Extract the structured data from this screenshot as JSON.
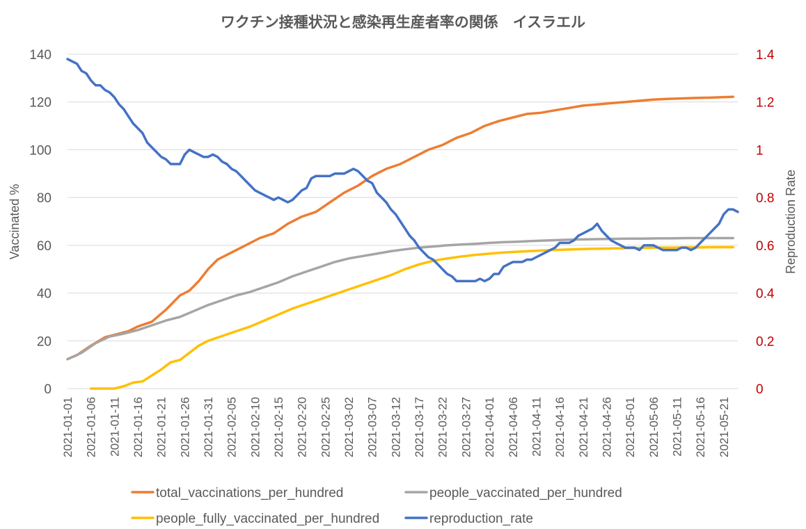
{
  "chart_data": {
    "type": "line",
    "title": "ワクチン接種状況と感染再生産者率の関係　イスラエル",
    "ylabel": "Vaccinated %",
    "y2label": "Reproduction Rate",
    "ylim": [
      0,
      140
    ],
    "y2lim": [
      0,
      1.4
    ],
    "yticks": [
      "0",
      "20",
      "40",
      "60",
      "80",
      "100",
      "120",
      "140"
    ],
    "y2ticks": [
      "0",
      "0.2",
      "0.4",
      "0.6",
      "0.8",
      "1",
      "1.2",
      "1.4"
    ],
    "xtick_labels": [
      "2021-01-01",
      "2021-01-06",
      "2021-01-11",
      "2021-01-16",
      "2021-01-21",
      "2021-01-26",
      "2021-01-31",
      "2021-02-05",
      "2021-02-10",
      "2021-02-15",
      "2021-02-20",
      "2021-02-25",
      "2021-03-02",
      "2021-03-07",
      "2021-03-12",
      "2021-03-17",
      "2021-03-22",
      "2021-03-27",
      "2021-04-01",
      "2021-04-06",
      "2021-04-11",
      "2021-04-16",
      "2021-04-21",
      "2021-04-26",
      "2021-05-01",
      "2021-05-06",
      "2021-05-11",
      "2021-05-16",
      "2021-05-21"
    ],
    "day_count": 143,
    "legend_position": "bottom",
    "series": [
      {
        "name": "total_vaccinations_per_hundred",
        "axis": "left",
        "color": "#ED7D31",
        "points": [
          [
            0,
            12.3
          ],
          [
            2,
            14
          ],
          [
            5,
            18
          ],
          [
            8,
            21.5
          ],
          [
            10,
            22.5
          ],
          [
            13,
            24
          ],
          [
            15,
            26
          ],
          [
            18,
            28
          ],
          [
            21,
            33
          ],
          [
            24,
            39
          ],
          [
            26,
            41
          ],
          [
            28,
            45
          ],
          [
            30,
            50
          ],
          [
            32,
            54
          ],
          [
            35,
            57
          ],
          [
            38,
            60
          ],
          [
            41,
            63
          ],
          [
            44,
            65
          ],
          [
            47,
            69
          ],
          [
            50,
            72
          ],
          [
            53,
            74
          ],
          [
            56,
            78
          ],
          [
            59,
            82
          ],
          [
            62,
            85
          ],
          [
            65,
            89
          ],
          [
            68,
            92
          ],
          [
            71,
            94
          ],
          [
            74,
            97
          ],
          [
            77,
            100
          ],
          [
            80,
            102
          ],
          [
            83,
            105
          ],
          [
            86,
            107
          ],
          [
            89,
            110
          ],
          [
            92,
            112
          ],
          [
            95,
            113.5
          ],
          [
            98,
            115
          ],
          [
            101,
            115.5
          ],
          [
            104,
            116.5
          ],
          [
            107,
            117.5
          ],
          [
            110,
            118.5
          ],
          [
            113,
            119
          ],
          [
            116,
            119.5
          ],
          [
            119,
            120
          ],
          [
            122,
            120.5
          ],
          [
            125,
            121
          ],
          [
            128,
            121.3
          ],
          [
            131,
            121.5
          ],
          [
            134,
            121.7
          ],
          [
            137,
            121.8
          ],
          [
            140,
            122
          ],
          [
            142,
            122.2
          ]
        ]
      },
      {
        "name": "people_vaccinated_per_hundred",
        "axis": "left",
        "color": "#A5A5A5",
        "points": [
          [
            0,
            12.3
          ],
          [
            3,
            15
          ],
          [
            6,
            19
          ],
          [
            9,
            21.8
          ],
          [
            12,
            23
          ],
          [
            15,
            24.5
          ],
          [
            18,
            26.5
          ],
          [
            21,
            28.5
          ],
          [
            24,
            30
          ],
          [
            27,
            32.5
          ],
          [
            30,
            35
          ],
          [
            33,
            37
          ],
          [
            36,
            39
          ],
          [
            39,
            40.5
          ],
          [
            42,
            42.5
          ],
          [
            45,
            44.5
          ],
          [
            48,
            47
          ],
          [
            51,
            49
          ],
          [
            54,
            51
          ],
          [
            57,
            53
          ],
          [
            60,
            54.5
          ],
          [
            63,
            55.5
          ],
          [
            66,
            56.5
          ],
          [
            69,
            57.5
          ],
          [
            72,
            58.3
          ],
          [
            75,
            59
          ],
          [
            78,
            59.5
          ],
          [
            81,
            60
          ],
          [
            84,
            60.3
          ],
          [
            87,
            60.6
          ],
          [
            90,
            61
          ],
          [
            93,
            61.3
          ],
          [
            96,
            61.5
          ],
          [
            99,
            61.8
          ],
          [
            102,
            62
          ],
          [
            105,
            62.2
          ],
          [
            108,
            62.4
          ],
          [
            111,
            62.5
          ],
          [
            114,
            62.6
          ],
          [
            117,
            62.7
          ],
          [
            120,
            62.8
          ],
          [
            123,
            62.8
          ],
          [
            126,
            62.9
          ],
          [
            129,
            62.9
          ],
          [
            132,
            63
          ],
          [
            135,
            63
          ],
          [
            138,
            63
          ],
          [
            142,
            63
          ]
        ]
      },
      {
        "name": "people_fully_vaccinated_per_hundred",
        "axis": "left",
        "color": "#FFC000",
        "points": [
          [
            5,
            0
          ],
          [
            10,
            0
          ],
          [
            12,
            1
          ],
          [
            14,
            2.5
          ],
          [
            16,
            3
          ],
          [
            18,
            5.5
          ],
          [
            20,
            8
          ],
          [
            22,
            11
          ],
          [
            24,
            12
          ],
          [
            26,
            15
          ],
          [
            28,
            18
          ],
          [
            30,
            20
          ],
          [
            33,
            22
          ],
          [
            36,
            24
          ],
          [
            39,
            26
          ],
          [
            42,
            28.5
          ],
          [
            45,
            31
          ],
          [
            48,
            33.5
          ],
          [
            51,
            35.5
          ],
          [
            54,
            37.5
          ],
          [
            57,
            39.5
          ],
          [
            60,
            41.5
          ],
          [
            63,
            43.5
          ],
          [
            66,
            45.5
          ],
          [
            69,
            47.5
          ],
          [
            72,
            50
          ],
          [
            75,
            52
          ],
          [
            78,
            53.5
          ],
          [
            81,
            54.5
          ],
          [
            84,
            55.3
          ],
          [
            87,
            56
          ],
          [
            90,
            56.5
          ],
          [
            93,
            57
          ],
          [
            96,
            57.3
          ],
          [
            99,
            57.6
          ],
          [
            102,
            57.9
          ],
          [
            105,
            58.1
          ],
          [
            108,
            58.3
          ],
          [
            111,
            58.5
          ],
          [
            114,
            58.6
          ],
          [
            117,
            58.7
          ],
          [
            120,
            58.8
          ],
          [
            123,
            58.9
          ],
          [
            126,
            59
          ],
          [
            129,
            59
          ],
          [
            132,
            59.1
          ],
          [
            135,
            59.1
          ],
          [
            138,
            59.2
          ],
          [
            142,
            59.2
          ]
        ]
      },
      {
        "name": "reproduction_rate",
        "axis": "right",
        "color": "#4472C4",
        "points": [
          [
            0,
            1.38
          ],
          [
            1,
            1.37
          ],
          [
            2,
            1.36
          ],
          [
            3,
            1.33
          ],
          [
            4,
            1.32
          ],
          [
            5,
            1.29
          ],
          [
            6,
            1.27
          ],
          [
            7,
            1.27
          ],
          [
            8,
            1.25
          ],
          [
            9,
            1.24
          ],
          [
            10,
            1.22
          ],
          [
            11,
            1.19
          ],
          [
            12,
            1.17
          ],
          [
            13,
            1.14
          ],
          [
            14,
            1.11
          ],
          [
            15,
            1.09
          ],
          [
            16,
            1.07
          ],
          [
            17,
            1.03
          ],
          [
            18,
            1.01
          ],
          [
            19,
            0.99
          ],
          [
            20,
            0.97
          ],
          [
            21,
            0.96
          ],
          [
            22,
            0.94
          ],
          [
            23,
            0.94
          ],
          [
            24,
            0.94
          ],
          [
            25,
            0.98
          ],
          [
            26,
            1.0
          ],
          [
            27,
            0.99
          ],
          [
            28,
            0.98
          ],
          [
            29,
            0.97
          ],
          [
            30,
            0.97
          ],
          [
            31,
            0.98
          ],
          [
            32,
            0.97
          ],
          [
            33,
            0.95
          ],
          [
            34,
            0.94
          ],
          [
            35,
            0.92
          ],
          [
            36,
            0.91
          ],
          [
            37,
            0.89
          ],
          [
            38,
            0.87
          ],
          [
            39,
            0.85
          ],
          [
            40,
            0.83
          ],
          [
            41,
            0.82
          ],
          [
            42,
            0.81
          ],
          [
            43,
            0.8
          ],
          [
            44,
            0.79
          ],
          [
            45,
            0.8
          ],
          [
            46,
            0.79
          ],
          [
            47,
            0.78
          ],
          [
            48,
            0.79
          ],
          [
            49,
            0.81
          ],
          [
            50,
            0.83
          ],
          [
            51,
            0.84
          ],
          [
            52,
            0.88
          ],
          [
            53,
            0.89
          ],
          [
            54,
            0.89
          ],
          [
            55,
            0.89
          ],
          [
            56,
            0.89
          ],
          [
            57,
            0.9
          ],
          [
            58,
            0.9
          ],
          [
            59,
            0.9
          ],
          [
            60,
            0.91
          ],
          [
            61,
            0.92
          ],
          [
            62,
            0.91
          ],
          [
            63,
            0.89
          ],
          [
            64,
            0.87
          ],
          [
            65,
            0.86
          ],
          [
            66,
            0.82
          ],
          [
            67,
            0.8
          ],
          [
            68,
            0.78
          ],
          [
            69,
            0.75
          ],
          [
            70,
            0.73
          ],
          [
            71,
            0.7
          ],
          [
            72,
            0.67
          ],
          [
            73,
            0.64
          ],
          [
            74,
            0.62
          ],
          [
            75,
            0.59
          ],
          [
            76,
            0.57
          ],
          [
            77,
            0.55
          ],
          [
            78,
            0.54
          ],
          [
            79,
            0.52
          ],
          [
            80,
            0.5
          ],
          [
            81,
            0.48
          ],
          [
            82,
            0.47
          ],
          [
            83,
            0.45
          ],
          [
            84,
            0.45
          ],
          [
            85,
            0.45
          ],
          [
            86,
            0.45
          ],
          [
            87,
            0.45
          ],
          [
            88,
            0.46
          ],
          [
            89,
            0.45
          ],
          [
            90,
            0.46
          ],
          [
            91,
            0.48
          ],
          [
            92,
            0.48
          ],
          [
            93,
            0.51
          ],
          [
            94,
            0.52
          ],
          [
            95,
            0.53
          ],
          [
            96,
            0.53
          ],
          [
            97,
            0.53
          ],
          [
            98,
            0.54
          ],
          [
            99,
            0.54
          ],
          [
            100,
            0.55
          ],
          [
            101,
            0.56
          ],
          [
            102,
            0.57
          ],
          [
            103,
            0.58
          ],
          [
            104,
            0.59
          ],
          [
            105,
            0.61
          ],
          [
            106,
            0.61
          ],
          [
            107,
            0.61
          ],
          [
            108,
            0.62
          ],
          [
            109,
            0.64
          ],
          [
            110,
            0.65
          ],
          [
            111,
            0.66
          ],
          [
            112,
            0.67
          ],
          [
            113,
            0.69
          ],
          [
            114,
            0.66
          ],
          [
            115,
            0.64
          ],
          [
            116,
            0.62
          ],
          [
            117,
            0.61
          ],
          [
            118,
            0.6
          ],
          [
            119,
            0.59
          ],
          [
            120,
            0.59
          ],
          [
            121,
            0.59
          ],
          [
            122,
            0.58
          ],
          [
            123,
            0.6
          ],
          [
            124,
            0.6
          ],
          [
            125,
            0.6
          ],
          [
            126,
            0.59
          ],
          [
            127,
            0.58
          ],
          [
            128,
            0.58
          ],
          [
            129,
            0.58
          ],
          [
            130,
            0.58
          ],
          [
            131,
            0.59
          ],
          [
            132,
            0.59
          ],
          [
            133,
            0.58
          ],
          [
            134,
            0.59
          ],
          [
            135,
            0.61
          ],
          [
            136,
            0.63
          ],
          [
            137,
            0.65
          ],
          [
            138,
            0.67
          ],
          [
            139,
            0.69
          ],
          [
            140,
            0.73
          ],
          [
            141,
            0.75
          ],
          [
            142,
            0.75
          ],
          [
            143,
            0.74
          ]
        ]
      }
    ]
  }
}
